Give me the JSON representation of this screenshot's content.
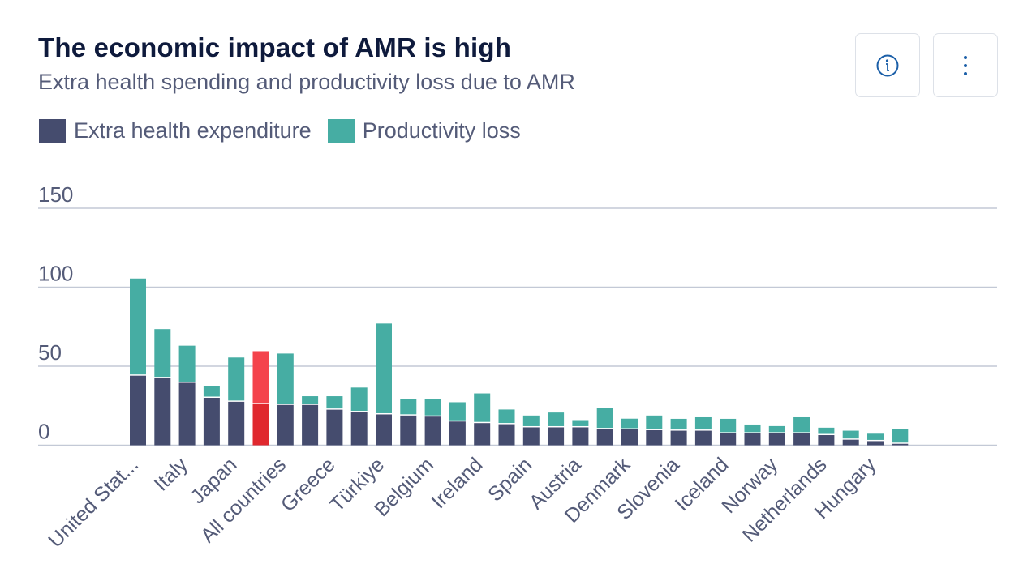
{
  "header": {
    "title": "The economic impact of AMR is high",
    "subtitle": "Extra health spending and productivity loss due to AMR"
  },
  "toolbar": {
    "info_icon": "info-circle-icon",
    "more_icon": "more-vertical-icon"
  },
  "legend": [
    {
      "label": "Extra health expenditure",
      "color": "#454c6e"
    },
    {
      "label": "Productivity loss",
      "color": "#46ada3"
    }
  ],
  "colors": {
    "health": "#454c6e",
    "productivity": "#46ada3",
    "highlight_health": "#e0282e",
    "highlight_productivity": "#f4434c",
    "grid": "#c3c9d6",
    "text": "#545b78"
  },
  "chart_data": {
    "type": "bar",
    "stacked": true,
    "title": "The economic impact of AMR is high",
    "subtitle": "Extra health spending and productivity loss due to AMR",
    "xlabel": "",
    "ylabel": "",
    "ylim": [
      0,
      150
    ],
    "yticks": [
      0,
      50,
      100,
      150
    ],
    "grid": true,
    "legend_position": "top-left",
    "categories": [
      "United Stat...",
      "",
      "Italy",
      "",
      "Japan",
      "",
      "All countries",
      "",
      "Greece",
      "",
      "Türkiye",
      "",
      "Belgium",
      "",
      "Ireland",
      "",
      "Spain",
      "",
      "Austria",
      "",
      "Denmark",
      "",
      "Slovenia",
      "",
      "Iceland",
      "",
      "Norway",
      "",
      "Netherlands",
      "",
      "Hungary",
      ""
    ],
    "highlight_index": 5,
    "series": [
      {
        "name": "Extra health expenditure",
        "values": [
          44,
          42.5,
          39.5,
          30,
          27.5,
          26,
          25.5,
          25.5,
          22.5,
          21,
          19.5,
          18.8,
          18.1,
          15,
          14,
          13.3,
          11.3,
          11.3,
          11.3,
          10.2,
          10,
          9.5,
          9.2,
          9.2,
          7.5,
          7.5,
          7.5,
          7.5,
          6.4,
          3.5,
          2.6,
          0.9
        ]
      },
      {
        "name": "Productivity loss",
        "values": [
          61.5,
          31,
          23.5,
          7.5,
          28,
          33.5,
          32.5,
          5.5,
          8.5,
          15.5,
          57.5,
          10.2,
          10.9,
          12.2,
          18.8,
          9.3,
          7.5,
          9.4,
          4.6,
          13.2,
          6.8,
          9.3,
          7.5,
          8.5,
          9.2,
          5.6,
          4.6,
          10.2,
          4.7,
          5.7,
          4.7,
          9.1
        ]
      }
    ]
  }
}
